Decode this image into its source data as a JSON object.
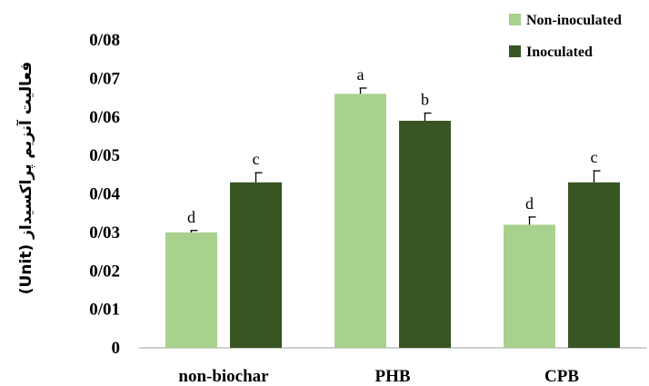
{
  "chart_data": {
    "type": "bar",
    "categories": [
      "non-biochar",
      "PHB",
      "CPB"
    ],
    "series": [
      {
        "name": "Non-inoculated",
        "color": "#a9d18e",
        "values": [
          0.03,
          0.066,
          0.032
        ],
        "errors": [
          0.0005,
          0.0015,
          0.002
        ],
        "letters": [
          "d",
          "a",
          "d"
        ]
      },
      {
        "name": "Inoculated",
        "color": "#375623",
        "values": [
          0.043,
          0.059,
          0.043
        ],
        "errors": [
          0.0025,
          0.002,
          0.003
        ],
        "letters": [
          "c",
          "b",
          "c"
        ]
      }
    ],
    "ylabel": "(Unit) فعالیت آنزیم پراکسیداز",
    "yticks": [
      "0",
      "0/01",
      "0/02",
      "0/03",
      "0/04",
      "0/05",
      "0/06",
      "0/07",
      "0/08"
    ],
    "ylim": [
      0,
      0.08
    ],
    "grid": false,
    "legend_position": "top-right"
  }
}
